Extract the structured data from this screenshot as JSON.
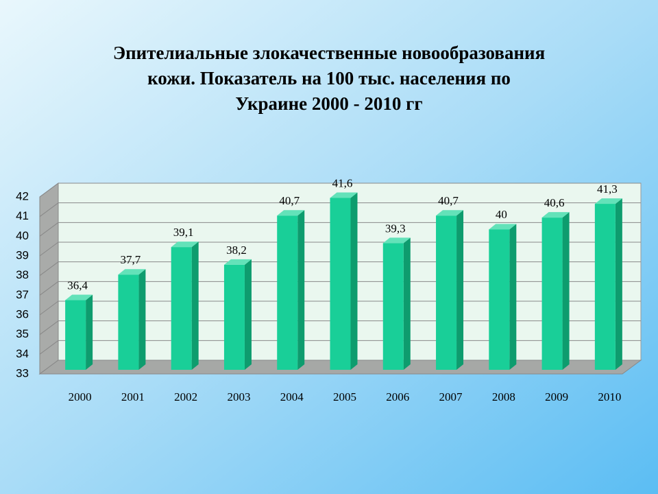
{
  "chart_data": {
    "type": "bar3d",
    "title": [
      "Эпителиальные злокачественные новообразования",
      "кожи. Показатель на 100 тыс. населения по",
      "Украине 2000 - 2010 гг"
    ],
    "categories": [
      "2000",
      "2001",
      "2002",
      "2003",
      "2004",
      "2005",
      "2006",
      "2007",
      "2008",
      "2009",
      "2010"
    ],
    "values": [
      36.4,
      37.7,
      39.1,
      38.2,
      40.7,
      41.6,
      39.3,
      40.7,
      40,
      40.6,
      41.3
    ],
    "value_labels": [
      "36,4",
      "37,7",
      "39,1",
      "38,2",
      "40,7",
      "41,6",
      "39,3",
      "40,7",
      "40",
      "40,6",
      "41,3"
    ],
    "color": "#19cf98",
    "ylim": [
      33,
      42
    ],
    "yticks": [
      33,
      34,
      35,
      36,
      37,
      38,
      39,
      40,
      41,
      42
    ],
    "grid": true
  }
}
